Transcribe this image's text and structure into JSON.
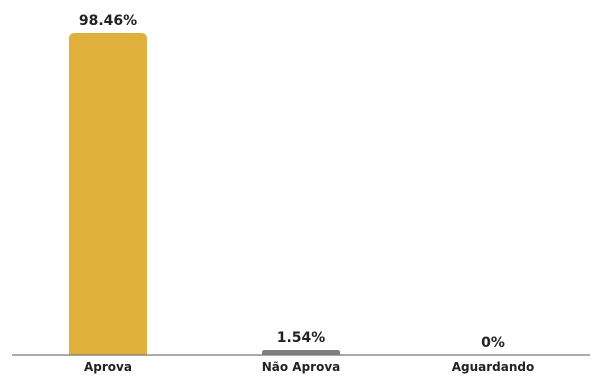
{
  "chart_data": {
    "type": "bar",
    "categories": [
      "Aprova",
      "Não Aprova",
      "Aguardando"
    ],
    "values": [
      98.46,
      1.54,
      0
    ],
    "value_labels": [
      "98.46%",
      "1.54%",
      "0%"
    ],
    "colors": [
      "#dfb03b",
      "#808080",
      "#808080"
    ],
    "ylim": [
      0,
      100
    ],
    "grid": false,
    "title": "",
    "xlabel": "",
    "ylabel": ""
  }
}
